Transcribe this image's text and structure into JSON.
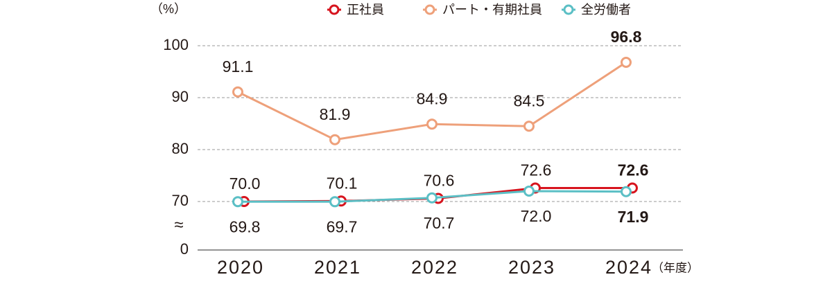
{
  "chart_data": {
    "type": "line",
    "y_unit_label": "（%）",
    "x_axis_label": "（年度）",
    "break_label": "≈",
    "categories": [
      "2020",
      "2021",
      "2022",
      "2023",
      "2024"
    ],
    "series": [
      {
        "name": "正社員",
        "color": "#d7141e",
        "values": [
          70.0,
          70.1,
          70.6,
          72.6,
          72.6
        ],
        "value_labels": [
          "70.0",
          "70.1",
          "70.6",
          "72.6",
          "72.6"
        ]
      },
      {
        "name": "パート・有期社員",
        "color": "#eea07a",
        "values": [
          91.1,
          81.9,
          84.9,
          84.5,
          96.8
        ],
        "value_labels": [
          "91.1",
          "81.9",
          "84.9",
          "84.5",
          "96.8"
        ]
      },
      {
        "name": "全労働者",
        "color": "#5bbfc5",
        "values": [
          69.8,
          69.7,
          70.7,
          72.0,
          71.9
        ],
        "value_labels": [
          "69.8",
          "69.7",
          "70.7",
          "72.0",
          "71.9"
        ]
      }
    ],
    "ylim": [
      0,
      100
    ],
    "yticks": [
      0,
      70,
      80,
      90,
      100
    ],
    "axis_break": [
      0,
      70
    ],
    "grid": true
  }
}
